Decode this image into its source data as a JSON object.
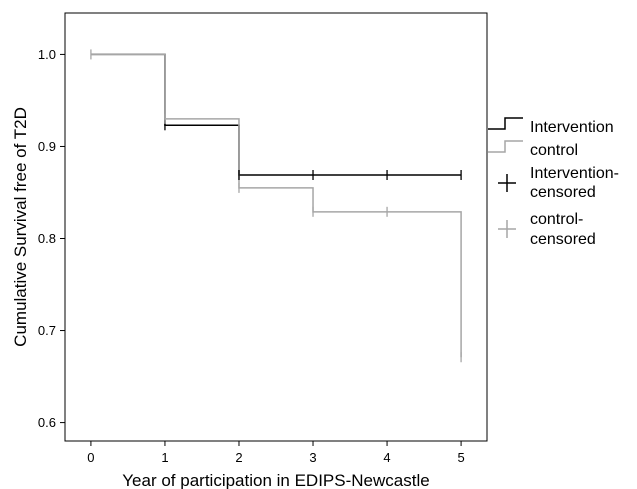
{
  "chart_data": {
    "type": "line",
    "subtype": "kaplan-meier-step",
    "title": "",
    "xlabel": "Year of participation in EDIPS-Newcastle",
    "ylabel": "Cumulative Survival free of T2D",
    "x_ticks": [
      "0",
      "1",
      "2",
      "3",
      "4",
      "5"
    ],
    "y_ticks": [
      "0.6",
      "0.7",
      "0.8",
      "0.9",
      "1.0"
    ],
    "xlim": [
      -0.35,
      5.35
    ],
    "ylim": [
      0.58,
      1.045
    ],
    "grid": false,
    "legend_position": "right",
    "series": [
      {
        "name": "Intervention",
        "color": "#000000",
        "steps": [
          [
            0,
            1.0
          ],
          [
            1,
            0.923
          ],
          [
            2,
            0.869
          ]
        ],
        "end_x": 5,
        "censored": [
          [
            1,
            0.923
          ],
          [
            2,
            0.869
          ],
          [
            3,
            0.869
          ],
          [
            4,
            0.869
          ],
          [
            5,
            0.869
          ]
        ]
      },
      {
        "name": "control",
        "color": "#a6a6a6",
        "steps": [
          [
            0,
            1.0
          ],
          [
            1,
            0.93
          ],
          [
            2,
            0.855
          ],
          [
            3,
            0.829
          ],
          [
            5,
            0.671
          ]
        ],
        "end_x": 5,
        "censored": [
          [
            0,
            1.0
          ],
          [
            1,
            0.93
          ],
          [
            2,
            0.855
          ],
          [
            3,
            0.829
          ],
          [
            4,
            0.829
          ],
          [
            5,
            0.671
          ]
        ]
      }
    ],
    "legend": [
      {
        "label": "Intervention",
        "kind": "line",
        "color": "#000000"
      },
      {
        "label": "control",
        "kind": "line",
        "color": "#a6a6a6"
      },
      {
        "label_lines": [
          "Intervention-",
          "censored"
        ],
        "kind": "censor",
        "color": "#000000"
      },
      {
        "label_lines": [
          "control-",
          "censored"
        ],
        "kind": "censor",
        "color": "#a6a6a6"
      }
    ]
  }
}
